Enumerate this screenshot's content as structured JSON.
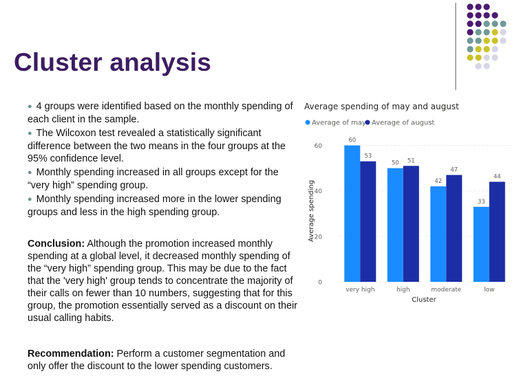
{
  "slide": {
    "title": "Cluster analysis",
    "bullets": [
      "4 groups were identified based on the monthly spending of each client in the sample.",
      "The Wilcoxon test revealed a statistically significant difference between the two means in the four groups at the 95% confidence level.",
      "Monthly spending increased in all groups except for the “very high” spending group.",
      "Monthly spending increased more in the lower spending groups and less in the high spending group."
    ],
    "conclusion_label": "Conclusion:",
    "conclusion_text": " Although the promotion increased monthly spending at a global level, it decreased monthly spending of the “very high” spending group. This may be due to the fact that the 'very high' group tends to concentrate the majority of their calls on fewer than 10 numbers, suggesting that for this group, the promotion essentially served as a discount on their usual calling habits.",
    "recommendation_label": "Recommendation:",
    "recommendation_text": " Perform a customer segmentation and only offer the discount to the lower spending customers."
  },
  "decoration": {
    "dot_colors": {
      "purple": "#4b1a6e",
      "teal": "#6f9a96",
      "olive": "#c9c32a",
      "lavender": "#d7d6e6"
    }
  },
  "chart_data": {
    "type": "bar",
    "title": "Average spending of may and august",
    "xlabel": "Cluster",
    "ylabel": "Average spending",
    "categories": [
      "very high",
      "high",
      "moderate",
      "low"
    ],
    "series": [
      {
        "name": "Average of may",
        "values": [
          60,
          50,
          42,
          33
        ],
        "color": "#1a8cff"
      },
      {
        "name": "Average of august",
        "values": [
          53,
          51,
          47,
          44
        ],
        "color": "#1c2ea6"
      }
    ],
    "ylim": [
      0,
      65
    ],
    "yticks": [
      0,
      20,
      40,
      60
    ],
    "grid": true,
    "legend": "top-left",
    "data_labels": true
  }
}
